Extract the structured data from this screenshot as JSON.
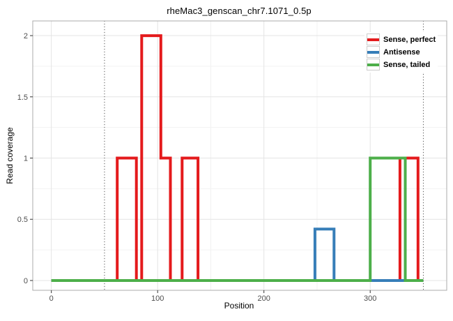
{
  "chart_data": {
    "type": "line",
    "step_style": true,
    "title": "rheMac3_genscan_chr7.1071_0.5p",
    "xlabel": "Position",
    "ylabel": "Read coverage",
    "xlim": [
      0,
      350
    ],
    "ylim": [
      0,
      2
    ],
    "x_ticks": [
      {
        "v": 0,
        "label": "0"
      },
      {
        "v": 100,
        "label": "100"
      },
      {
        "v": 200,
        "label": "200"
      },
      {
        "v": 300,
        "label": "300"
      }
    ],
    "y_ticks": [
      {
        "v": 0,
        "label": "0"
      },
      {
        "v": 0.5,
        "label": "0.5"
      },
      {
        "v": 1,
        "label": "1"
      },
      {
        "v": 1.5,
        "label": "1.5"
      },
      {
        "v": 2,
        "label": "2"
      }
    ],
    "x_minor": [
      50,
      150,
      250,
      350
    ],
    "y_minor": [
      0.25,
      0.75,
      1.25,
      1.75
    ],
    "grid": true,
    "legend_position": "top-right",
    "vlines": [
      {
        "x": 50,
        "style": "dotted",
        "color": "#4d4d4d"
      },
      {
        "x": 350,
        "style": "dotted",
        "color": "#4d4d4d"
      }
    ],
    "series": [
      {
        "name": "Sense, perfect",
        "color": "#E41A1C",
        "points": [
          [
            0,
            0
          ],
          [
            62,
            0
          ],
          [
            62,
            1
          ],
          [
            80,
            1
          ],
          [
            80,
            0
          ],
          [
            85,
            0
          ],
          [
            85,
            2
          ],
          [
            103,
            2
          ],
          [
            103,
            1
          ],
          [
            112,
            1
          ],
          [
            112,
            0
          ],
          [
            123,
            0
          ],
          [
            123,
            1
          ],
          [
            138,
            1
          ],
          [
            138,
            0
          ],
          [
            328,
            0
          ],
          [
            328,
            1
          ],
          [
            345,
            1
          ],
          [
            345,
            0
          ],
          [
            350,
            0
          ]
        ]
      },
      {
        "name": "Antisense",
        "color": "#377EB8",
        "points": [
          [
            0,
            0
          ],
          [
            248,
            0
          ],
          [
            248,
            0.42
          ],
          [
            266,
            0.42
          ],
          [
            266,
            0
          ],
          [
            350,
            0
          ]
        ]
      },
      {
        "name": "Sense, tailed",
        "color": "#4DAF4A",
        "points": [
          [
            0,
            0
          ],
          [
            300,
            0
          ],
          [
            300,
            1
          ],
          [
            333,
            1
          ],
          [
            333,
            0
          ],
          [
            350,
            0
          ]
        ]
      }
    ],
    "legend": [
      {
        "label": "Sense, perfect",
        "color": "#E41A1C"
      },
      {
        "label": "Antisense",
        "color": "#377EB8"
      },
      {
        "label": "Sense, tailed",
        "color": "#4DAF4A"
      }
    ],
    "style": {
      "panel_background": "#ffffff",
      "panel_border": "#ababab",
      "grid_major": "#e4e4e4",
      "grid_minor": "#f2f2f2",
      "tick_color": "#333333",
      "tick_label_color": "#4d4d4d",
      "line_width": 4
    }
  }
}
